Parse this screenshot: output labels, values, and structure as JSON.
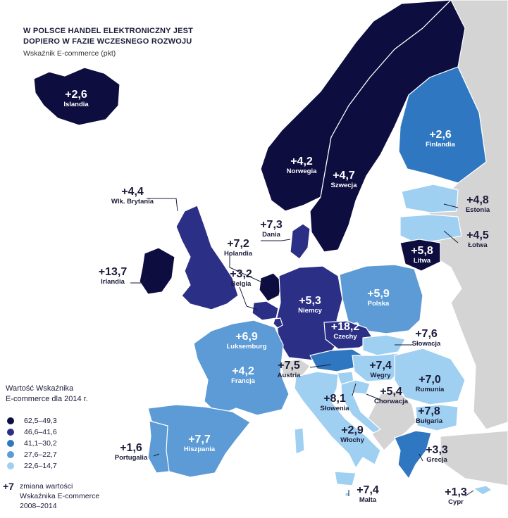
{
  "header": {
    "title_line1": "W POLSCE HANDEL ELEKTRONICZNY JEST",
    "title_line2": "DOPIERO W FAZIE WCZESNEGO ROZWOJU",
    "subtitle": "Wskaźnik E-commerce (pkt)"
  },
  "legend": {
    "title_line1": "Wartość Wskaźnika",
    "title_line2": "E-commerce dla 2014 r.",
    "classes": [
      {
        "range": "62,5–49,3",
        "color": "#0d0d3f"
      },
      {
        "range": "46,6–41,6",
        "color": "#2b2f86"
      },
      {
        "range": "41,1–30,2",
        "color": "#2f77c0"
      },
      {
        "range": "27,6–22,7",
        "color": "#5c9bd6"
      },
      {
        "range": "22,6–14,7",
        "color": "#9fd0f1"
      }
    ],
    "note_value": "+7",
    "note_line1": "zmiana wartości",
    "note_line2": "Wskaźnika E-commerce",
    "note_line3": "2008–2014"
  },
  "colors": {
    "background": "#ffffff",
    "nonmember_land": "#d4d4d4",
    "borders": "#ffffff"
  },
  "countries": [
    {
      "id": "islandia",
      "name": "Islandia",
      "change": "+2,6",
      "class": 0,
      "label": "inside"
    },
    {
      "id": "norwegia",
      "name": "Norwegia",
      "change": "+4,2",
      "class": 0,
      "label": "inside"
    },
    {
      "id": "szwecja",
      "name": "Szwecja",
      "change": "+4,7",
      "class": 0,
      "label": "inside"
    },
    {
      "id": "finlandia",
      "name": "Finlandia",
      "change": "+2,6",
      "class": 2,
      "label": "inside"
    },
    {
      "id": "estonia",
      "name": "Estonia",
      "change": "+4,8",
      "class": 4,
      "label": "outside"
    },
    {
      "id": "lotwa",
      "name": "Łotwa",
      "change": "+4,5",
      "class": 4,
      "label": "outside"
    },
    {
      "id": "litwa",
      "name": "Litwa",
      "change": "+5,8",
      "class": 0,
      "label": "inside"
    },
    {
      "id": "wlk",
      "name": "Wlk. Brytania",
      "change": "+4,4",
      "class": 1,
      "label": "outside"
    },
    {
      "id": "irlandia",
      "name": "Irlandia",
      "change": "+13,7",
      "class": 0,
      "label": "outside"
    },
    {
      "id": "dania",
      "name": "Dania",
      "change": "+7,3",
      "class": 1,
      "label": "outside"
    },
    {
      "id": "holandia",
      "name": "Holandia",
      "change": "+7,2",
      "class": 0,
      "label": "outside"
    },
    {
      "id": "belgia",
      "name": "Belgia",
      "change": "+3,2",
      "class": 1,
      "label": "outside"
    },
    {
      "id": "niemcy",
      "name": "Niemcy",
      "change": "+5,3",
      "class": 1,
      "label": "inside"
    },
    {
      "id": "polska",
      "name": "Polska",
      "change": "+5,9",
      "class": 3,
      "label": "inside"
    },
    {
      "id": "czechy",
      "name": "Czechy",
      "change": "+18,2",
      "class": 1,
      "label": "inside"
    },
    {
      "id": "luksemburg",
      "name": "Luksemburg",
      "change": "+6,9",
      "class": 1,
      "label": "inside"
    },
    {
      "id": "francja",
      "name": "Francja",
      "change": "+4,2",
      "class": 3,
      "label": "inside"
    },
    {
      "id": "austria",
      "name": "Austria",
      "change": "+7,5",
      "class": 2,
      "label": "outside"
    },
    {
      "id": "slowacja",
      "name": "Słowacja",
      "change": "+7,6",
      "class": 4,
      "label": "outside"
    },
    {
      "id": "wegry",
      "name": "Węgry",
      "change": "+7,4",
      "class": 4,
      "label": "inside"
    },
    {
      "id": "rumunia",
      "name": "Rumunia",
      "change": "+7,0",
      "class": 4,
      "label": "inside"
    },
    {
      "id": "slowenia",
      "name": "Słowenia",
      "change": "+8,1",
      "class": 4,
      "label": "outside"
    },
    {
      "id": "chorwacja",
      "name": "Chorwacja",
      "change": "+5,4",
      "class": 4,
      "label": "outside"
    },
    {
      "id": "bulgaria",
      "name": "Bułgaria",
      "change": "+7,8",
      "class": 4,
      "label": "inside"
    },
    {
      "id": "hiszpania",
      "name": "Hiszpania",
      "change": "+7,7",
      "class": 3,
      "label": "inside"
    },
    {
      "id": "portugalia",
      "name": "Portugalia",
      "change": "+1,6",
      "class": 3,
      "label": "outside"
    },
    {
      "id": "wlochy",
      "name": "Włochy",
      "change": "+2,9",
      "class": 4,
      "label": "inside"
    },
    {
      "id": "grecja",
      "name": "Grecja",
      "change": "+3,3",
      "class": 2,
      "label": "outside"
    },
    {
      "id": "malta",
      "name": "Malta",
      "change": "+7,4",
      "class": 4,
      "label": "outside"
    },
    {
      "id": "cypr",
      "name": "Cypr",
      "change": "+1,3",
      "class": 4,
      "label": "outside"
    }
  ]
}
